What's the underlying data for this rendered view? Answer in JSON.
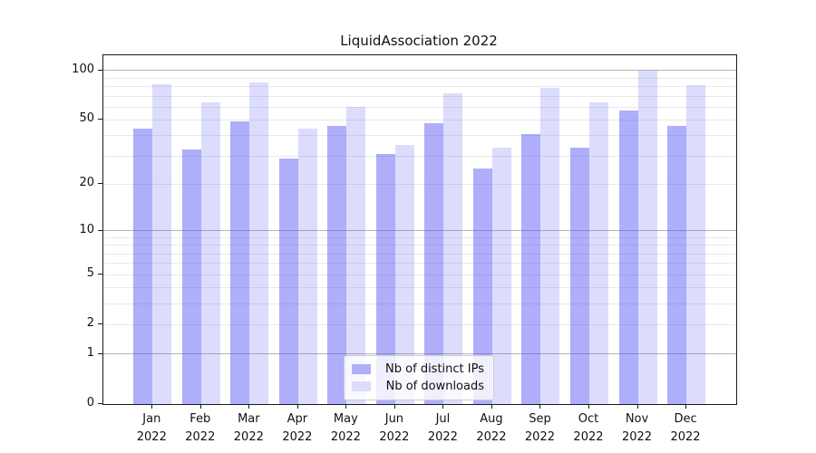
{
  "title": "LiquidAssociation 2022",
  "chart_data": {
    "type": "bar",
    "title": "LiquidAssociation 2022",
    "categories": [
      "Jan",
      "Feb",
      "Mar",
      "Apr",
      "May",
      "Jun",
      "Jul",
      "Aug",
      "Sep",
      "Oct",
      "Nov",
      "Dec"
    ],
    "category_year": "2022",
    "series": [
      {
        "name": "Nb of distinct IPs",
        "color": "rgba(82,82,245,0.47)",
        "legend_swatch": "#aeaef9",
        "values": [
          44,
          33,
          49,
          29,
          46,
          31,
          48,
          25,
          41,
          34,
          57,
          46
        ]
      },
      {
        "name": "Nb of downloads",
        "color": "rgba(82,82,245,0.20)",
        "legend_swatch": "#dcdcfb",
        "values": [
          83,
          64,
          85,
          44,
          60,
          35,
          73,
          34,
          79,
          64,
          100,
          82
        ]
      }
    ],
    "yticks": [
      0,
      1,
      2,
      5,
      10,
      20,
      50,
      100
    ],
    "major_gridlines": [
      1,
      10,
      100
    ],
    "minor_gridlines": [
      2,
      3,
      4,
      5,
      6,
      7,
      8,
      9,
      20,
      30,
      40,
      50,
      60,
      70,
      80,
      90
    ],
    "scale": "log1p",
    "ylim": [
      0,
      124
    ],
    "xlabel": "",
    "ylabel": "",
    "grid": true,
    "legend_position": "bottom-center"
  }
}
